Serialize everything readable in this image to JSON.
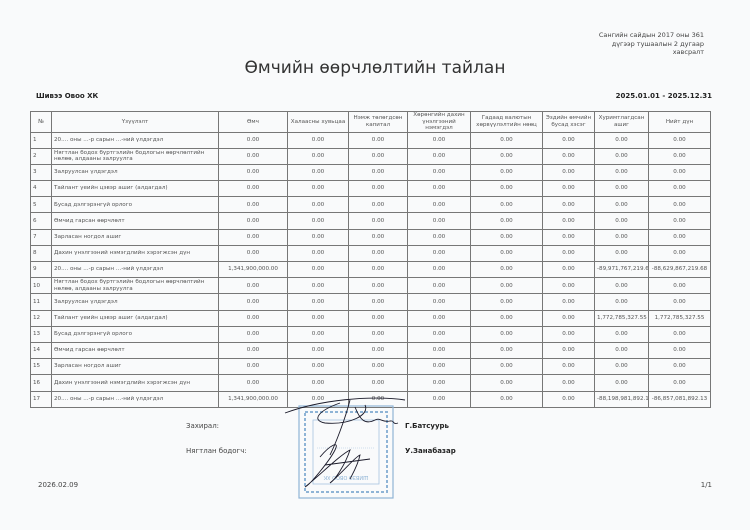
{
  "header": {
    "note": "Сангийн сайдын 2017 оны 361 дүгээр тушаалын  2 дугаар хавсралт",
    "note_lines": [
      "Сангийн сайдын 2017 оны 361",
      "дүгээр тушаалын  2 дугаар",
      "хавсралт"
    ],
    "title": "Өмчийн өөрчлөлтийн тайлан",
    "company": "Шивээ Овоо ХК",
    "period": "2025.01.01 - 2025.12.31"
  },
  "table": {
    "columns": [
      "№",
      "Үзүүлэлт",
      "Өмч",
      "Халаасны хувьцаа",
      "Нэмж төлөгдсөн капитал",
      "Хөрөнгийн дахин үнэлгээний нэмэгдэл",
      "Гадаад валютын хөрвүүлэлтийн нөөц",
      "Эздийн өмчийн бусад хэсэг",
      "Хуримтлагдсан ашиг",
      "Нийт дүн"
    ],
    "rows": [
      [
        "1",
        "20.... оны ...-р сарын ...-ний үлдэгдэл",
        "0.00",
        "0.00",
        "0.00",
        "0.00",
        "0.00",
        "0.00",
        "0.00",
        "0.00"
      ],
      [
        "2",
        "Нягтлан бодох бүртгэлийн бодлогын өөрчлөлтийн нөлөө, алдааны залруулга",
        "0.00",
        "0.00",
        "0.00",
        "0.00",
        "0.00",
        "0.00",
        "0.00",
        "0.00"
      ],
      [
        "3",
        "Залруулсан  үлдэгдэл",
        "0.00",
        "0.00",
        "0.00",
        "0.00",
        "0.00",
        "0.00",
        "0.00",
        "0.00"
      ],
      [
        "4",
        "Тайлант үеийн цэвэр ашиг (алдагдал)",
        "0.00",
        "0.00",
        "0.00",
        "0.00",
        "0.00",
        "0.00",
        "0.00",
        "0.00"
      ],
      [
        "5",
        "Бусад дэлгэрэнгүй орлого",
        "0.00",
        "0.00",
        "0.00",
        "0.00",
        "0.00",
        "0.00",
        "0.00",
        "0.00"
      ],
      [
        "6",
        "Өмчид гарсан өөрчлөлт",
        "0.00",
        "0.00",
        "0.00",
        "0.00",
        "0.00",
        "0.00",
        "0.00",
        "0.00"
      ],
      [
        "7",
        "Зарласан ногдол ашиг",
        "0.00",
        "0.00",
        "0.00",
        "0.00",
        "0.00",
        "0.00",
        "0.00",
        "0.00"
      ],
      [
        "8",
        "Дахин үнэлгээний нэмэгдлийн хэрэгжсэн дүн",
        "0.00",
        "0.00",
        "0.00",
        "0.00",
        "0.00",
        "0.00",
        "0.00",
        "0.00"
      ],
      [
        "9",
        "20.... оны ...-р сарын ...-ний үлдэгдэл",
        "1,341,900,000.00",
        "0.00",
        "0.00",
        "0.00",
        "0.00",
        "0.00",
        "-89,971,767,219.68",
        "-88,629,867,219.68"
      ],
      [
        "10",
        "Нягтлан бодох бүртгэлийн бодлогын өөрчлөлтийн нөлөө, алдааны залруулга",
        "0.00",
        "0.00",
        "0.00",
        "0.00",
        "0.00",
        "0.00",
        "0.00",
        "0.00"
      ],
      [
        "11",
        "Залруулсан  үлдэгдэл",
        "0.00",
        "0.00",
        "0.00",
        "0.00",
        "0.00",
        "0.00",
        "0.00",
        "0.00"
      ],
      [
        "12",
        "Тайлант үеийн цэвэр ашиг (алдагдал)",
        "0.00",
        "0.00",
        "0.00",
        "0.00",
        "0.00",
        "0.00",
        "1,772,785,327.55",
        "1,772,785,327.55"
      ],
      [
        "13",
        "Бусад дэлгэрэнгүй орлого",
        "0.00",
        "0.00",
        "0.00",
        "0.00",
        "0.00",
        "0.00",
        "0.00",
        "0.00"
      ],
      [
        "14",
        "Өмчид гарсан өөрчлөлт",
        "0.00",
        "0.00",
        "0.00",
        "0.00",
        "0.00",
        "0.00",
        "0.00",
        "0.00"
      ],
      [
        "15",
        "Зарласан ногдол ашиг",
        "0.00",
        "0.00",
        "0.00",
        "0.00",
        "0.00",
        "0.00",
        "0.00",
        "0.00"
      ],
      [
        "16",
        "Дахин үнэлгээний нэмэгдлийн хэрэгжсэн дүн",
        "0.00",
        "0.00",
        "0.00",
        "0.00",
        "0.00",
        "0.00",
        "0.00",
        "0.00"
      ],
      [
        "17",
        "20.... оны ...-р сарын ...-ний үлдэгдэл",
        "1,341,900,000.00",
        "0.00",
        "0.00",
        "0.00",
        "0.00",
        "0.00",
        "-88,198,981,892.13",
        "-86,857,081,892.13"
      ]
    ]
  },
  "signatures": {
    "director_label": "Захирал:",
    "director_name": "Г.Батсуурь",
    "accountant_label": "Нягтлан бодогч:",
    "accountant_name": "У.Занабазар",
    "stamp_text": "ШИВЭЭ ОВОО ХК",
    "stamp_color": "#7fa8cf",
    "ink_color": "#1a1a2a"
  },
  "footer": {
    "date": "2026.02.09",
    "page": "1/1"
  }
}
